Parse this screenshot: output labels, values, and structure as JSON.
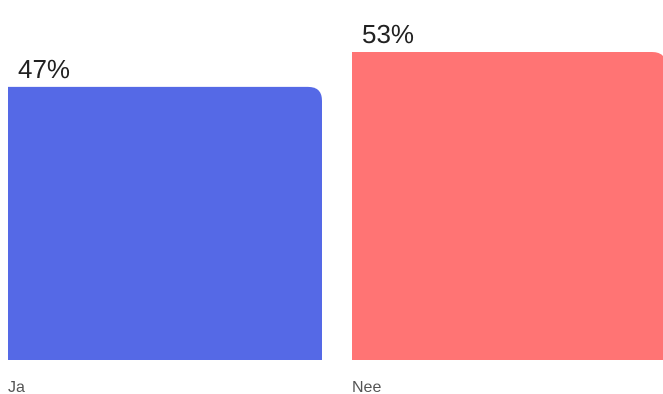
{
  "chart_data": {
    "type": "bar",
    "categories": [
      "Ja",
      "Nee"
    ],
    "values": [
      47,
      53
    ],
    "value_labels": [
      "47%",
      "53%"
    ],
    "colors": [
      "#5569e6",
      "#ff7474"
    ],
    "ylim": [
      0,
      53
    ],
    "grid": false,
    "legend": "none"
  }
}
